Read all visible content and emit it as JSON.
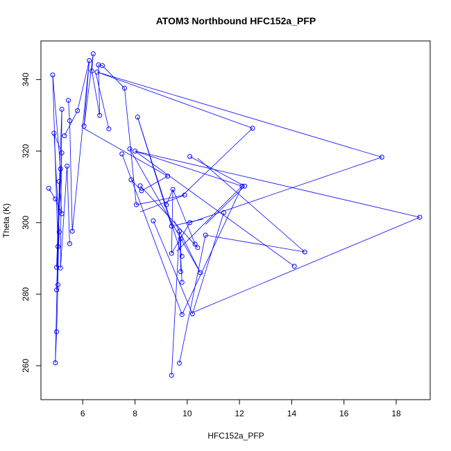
{
  "chart_data": {
    "type": "line",
    "title": "ATOM3 Northbound HFC152a_PFP",
    "xlabel": "HFC152a_PFP",
    "ylabel": "Theta (K)",
    "xlim": [
      4.4,
      19.3
    ],
    "ylim": [
      250.5,
      350.8
    ],
    "x_ticks": [
      6,
      8,
      10,
      12,
      14,
      16,
      18
    ],
    "y_ticks": [
      260,
      280,
      300,
      320,
      340
    ],
    "grid": false,
    "series": [
      {
        "color": "#0000ff",
        "marker": "open-circle",
        "points": [
          {
            "x": 4.7,
            "y": 309.6
          },
          {
            "x": 4.95,
            "y": 306.6
          },
          {
            "x": 5.2,
            "y": 302.5
          },
          {
            "x": 5.1,
            "y": 311.5
          },
          {
            "x": 5.05,
            "y": 282.6
          },
          {
            "x": 5.0,
            "y": 269.5
          },
          {
            "x": 4.95,
            "y": 260.8
          },
          {
            "x": 5.05,
            "y": 293.3
          },
          {
            "x": 4.85,
            "y": 341.3
          },
          {
            "x": 5.15,
            "y": 315.0
          },
          {
            "x": 5.0,
            "y": 281.2
          },
          {
            "x": 5.1,
            "y": 297.4
          },
          {
            "x": 4.9,
            "y": 325.0
          },
          {
            "x": 5.2,
            "y": 319.5
          },
          {
            "x": 5.0,
            "y": 287.5
          },
          {
            "x": 5.2,
            "y": 331.7
          },
          {
            "x": 5.15,
            "y": 287.3
          },
          {
            "x": 5.4,
            "y": 315.8
          },
          {
            "x": 5.5,
            "y": 294.1
          },
          {
            "x": 5.6,
            "y": 297.6
          },
          {
            "x": 5.5,
            "y": 328.5
          },
          {
            "x": 5.45,
            "y": 334.2
          },
          {
            "x": 5.3,
            "y": 324.3
          },
          {
            "x": 5.8,
            "y": 331.3
          },
          {
            "x": 6.25,
            "y": 345.3
          },
          {
            "x": 6.05,
            "y": 327.0
          },
          {
            "x": 6.35,
            "y": 342.4
          },
          {
            "x": 6.4,
            "y": 347.2
          },
          {
            "x": 6.55,
            "y": 342.1
          },
          {
            "x": 6.6,
            "y": 344.1
          },
          {
            "x": 6.65,
            "y": 330.0
          },
          {
            "x": 6.75,
            "y": 343.9
          },
          {
            "x": 7.6,
            "y": 337.6
          },
          {
            "x": 7.0,
            "y": 326.2
          },
          {
            "x": 8.1,
            "y": 329.5
          },
          {
            "x": 7.5,
            "y": 319.2
          },
          {
            "x": 7.8,
            "y": 320.6
          },
          {
            "x": 8.0,
            "y": 320.0
          },
          {
            "x": 8.25,
            "y": 308.9
          },
          {
            "x": 7.85,
            "y": 312.0
          },
          {
            "x": 8.05,
            "y": 305.0
          },
          {
            "x": 8.2,
            "y": 310.3
          },
          {
            "x": 8.7,
            "y": 300.5
          },
          {
            "x": 9.2,
            "y": 305.0
          },
          {
            "x": 9.25,
            "y": 313.0
          },
          {
            "x": 9.45,
            "y": 309.3
          },
          {
            "x": 9.4,
            "y": 299.0
          },
          {
            "x": 9.4,
            "y": 291.4
          },
          {
            "x": 9.4,
            "y": 257.3
          },
          {
            "x": 9.7,
            "y": 260.7
          },
          {
            "x": 9.8,
            "y": 274.3
          },
          {
            "x": 9.75,
            "y": 286.3
          },
          {
            "x": 9.8,
            "y": 283.3
          },
          {
            "x": 9.7,
            "y": 297.6
          },
          {
            "x": 9.75,
            "y": 295.5
          },
          {
            "x": 9.8,
            "y": 290.6
          },
          {
            "x": 9.9,
            "y": 307.7
          },
          {
            "x": 10.1,
            "y": 318.5
          },
          {
            "x": 10.1,
            "y": 300.0
          },
          {
            "x": 10.2,
            "y": 274.5
          },
          {
            "x": 10.3,
            "y": 294.0
          },
          {
            "x": 10.4,
            "y": 293.0
          },
          {
            "x": 10.5,
            "y": 286.0
          },
          {
            "x": 10.7,
            "y": 296.5
          },
          {
            "x": 11.4,
            "y": 302.8
          },
          {
            "x": 12.1,
            "y": 310.2
          },
          {
            "x": 12.2,
            "y": 310.2
          },
          {
            "x": 12.5,
            "y": 326.4
          },
          {
            "x": 14.1,
            "y": 287.8
          },
          {
            "x": 14.5,
            "y": 291.8
          },
          {
            "x": 17.45,
            "y": 318.3
          },
          {
            "x": 18.9,
            "y": 301.5
          }
        ],
        "segments": [
          [
            [
              4.7,
              309.6
            ],
            [
              4.95,
              306.6
            ]
          ],
          [
            [
              4.95,
              306.6
            ],
            [
              5.2,
              302.5
            ]
          ],
          [
            [
              5.2,
              302.5
            ],
            [
              5.1,
              311.5
            ]
          ],
          [
            [
              5.1,
              311.5
            ],
            [
              5.05,
              282.6
            ]
          ],
          [
            [
              5.05,
              282.6
            ],
            [
              5.0,
              269.5
            ]
          ],
          [
            [
              5.0,
              269.5
            ],
            [
              4.95,
              260.8
            ]
          ],
          [
            [
              4.95,
              260.8
            ],
            [
              5.05,
              293.3
            ]
          ],
          [
            [
              5.05,
              293.3
            ],
            [
              4.85,
              341.3
            ]
          ],
          [
            [
              4.85,
              341.3
            ],
            [
              5.15,
              315.0
            ]
          ],
          [
            [
              5.15,
              315.0
            ],
            [
              5.0,
              281.2
            ]
          ],
          [
            [
              5.0,
              281.2
            ],
            [
              5.1,
              297.4
            ]
          ],
          [
            [
              5.1,
              297.4
            ],
            [
              4.9,
              325.0
            ]
          ],
          [
            [
              4.9,
              325.0
            ],
            [
              5.2,
              319.5
            ]
          ],
          [
            [
              5.2,
              319.5
            ],
            [
              5.0,
              287.5
            ]
          ],
          [
            [
              5.0,
              287.5
            ],
            [
              5.2,
              331.7
            ]
          ],
          [
            [
              5.2,
              331.7
            ],
            [
              5.15,
              287.3
            ]
          ],
          [
            [
              5.15,
              287.3
            ],
            [
              5.4,
              315.8
            ]
          ],
          [
            [
              5.4,
              315.8
            ],
            [
              5.5,
              294.1
            ]
          ],
          [
            [
              5.6,
              297.6
            ],
            [
              5.5,
              328.5
            ]
          ],
          [
            [
              5.5,
              328.5
            ],
            [
              5.45,
              334.2
            ]
          ],
          [
            [
              5.3,
              324.3
            ],
            [
              5.8,
              331.3
            ]
          ],
          [
            [
              5.8,
              331.3
            ],
            [
              6.25,
              345.3
            ]
          ],
          [
            [
              6.25,
              345.3
            ],
            [
              6.05,
              327.0
            ]
          ],
          [
            [
              6.25,
              345.3
            ],
            [
              5.6,
              297.6
            ]
          ],
          [
            [
              6.05,
              327.0
            ],
            [
              6.4,
              347.2
            ]
          ],
          [
            [
              6.4,
              347.2
            ],
            [
              6.35,
              342.4
            ]
          ],
          [
            [
              6.35,
              342.4
            ],
            [
              6.65,
              330.0
            ]
          ],
          [
            [
              6.65,
              330.0
            ],
            [
              6.6,
              344.1
            ]
          ],
          [
            [
              6.6,
              344.1
            ],
            [
              6.75,
              343.9
            ]
          ],
          [
            [
              6.75,
              343.9
            ],
            [
              7.6,
              337.6
            ]
          ],
          [
            [
              6.55,
              342.1
            ],
            [
              12.5,
              326.4
            ]
          ],
          [
            [
              6.55,
              342.1
            ],
            [
              17.45,
              318.3
            ]
          ],
          [
            [
              7.6,
              337.6
            ],
            [
              8.05,
              305.0
            ]
          ],
          [
            [
              7.0,
              326.2
            ],
            [
              6.5,
              341.8
            ]
          ],
          [
            [
              8.1,
              329.5
            ],
            [
              9.4,
              299.0
            ]
          ],
          [
            [
              7.5,
              319.2
            ],
            [
              9.8,
              274.3
            ]
          ],
          [
            [
              7.8,
              320.6
            ],
            [
              10.5,
              286.0
            ]
          ],
          [
            [
              8.0,
              320.0
            ],
            [
              12.1,
              310.2
            ]
          ],
          [
            [
              8.0,
              320.0
            ],
            [
              14.1,
              287.8
            ]
          ],
          [
            [
              6.0,
              326.5
            ],
            [
              9.25,
              313.0
            ]
          ],
          [
            [
              9.25,
              313.0
            ],
            [
              8.25,
              308.9
            ]
          ],
          [
            [
              8.25,
              308.9
            ],
            [
              7.85,
              312.0
            ]
          ],
          [
            [
              8.2,
              310.3
            ],
            [
              10.4,
              293.0
            ]
          ],
          [
            [
              8.05,
              305.0
            ],
            [
              9.9,
              307.7
            ]
          ],
          [
            [
              8.7,
              300.5
            ],
            [
              10.2,
              274.5
            ]
          ],
          [
            [
              9.2,
              305.0
            ],
            [
              9.45,
              309.3
            ]
          ],
          [
            [
              9.45,
              309.3
            ],
            [
              9.4,
              291.4
            ]
          ],
          [
            [
              9.4,
              291.4
            ],
            [
              10.1,
              300.0
            ]
          ],
          [
            [
              9.4,
              257.3
            ],
            [
              9.7,
              297.6
            ]
          ],
          [
            [
              9.7,
              260.7
            ],
            [
              10.7,
              296.5
            ]
          ],
          [
            [
              9.8,
              283.3
            ],
            [
              9.7,
              297.6
            ]
          ],
          [
            [
              9.75,
              295.5
            ],
            [
              9.75,
              286.3
            ]
          ],
          [
            [
              9.9,
              307.7
            ],
            [
              8.2,
              303.0
            ]
          ],
          [
            [
              9.8,
              307.5
            ],
            [
              12.5,
              326.4
            ]
          ],
          [
            [
              10.1,
              318.5
            ],
            [
              12.2,
              310.2
            ]
          ],
          [
            [
              10.1,
              300.0
            ],
            [
              17.45,
              318.3
            ]
          ],
          [
            [
              10.2,
              274.5
            ],
            [
              11.4,
              302.8
            ]
          ],
          [
            [
              10.3,
              294.0
            ],
            [
              9.45,
              309.3
            ]
          ],
          [
            [
              10.4,
              318.0
            ],
            [
              14.5,
              291.8
            ]
          ],
          [
            [
              10.7,
              296.5
            ],
            [
              14.5,
              291.8
            ]
          ],
          [
            [
              10.25,
              275.0
            ],
            [
              18.9,
              301.5
            ]
          ],
          [
            [
              8.0,
              320.0
            ],
            [
              18.9,
              301.5
            ]
          ],
          [
            [
              12.1,
              310.2
            ],
            [
              9.8,
              274.3
            ]
          ],
          [
            [
              12.1,
              310.2
            ],
            [
              9.6,
              292.0
            ]
          ],
          [
            [
              12.2,
              310.2
            ],
            [
              10.7,
              299.5
            ]
          ],
          [
            [
              10.6,
              301.0
            ],
            [
              9.4,
              299.0
            ]
          ],
          [
            [
              9.5,
              300.5
            ],
            [
              10.5,
              286.0
            ]
          ],
          [
            [
              8.1,
              329.5
            ],
            [
              9.8,
              290.6
            ]
          ]
        ]
      }
    ]
  }
}
